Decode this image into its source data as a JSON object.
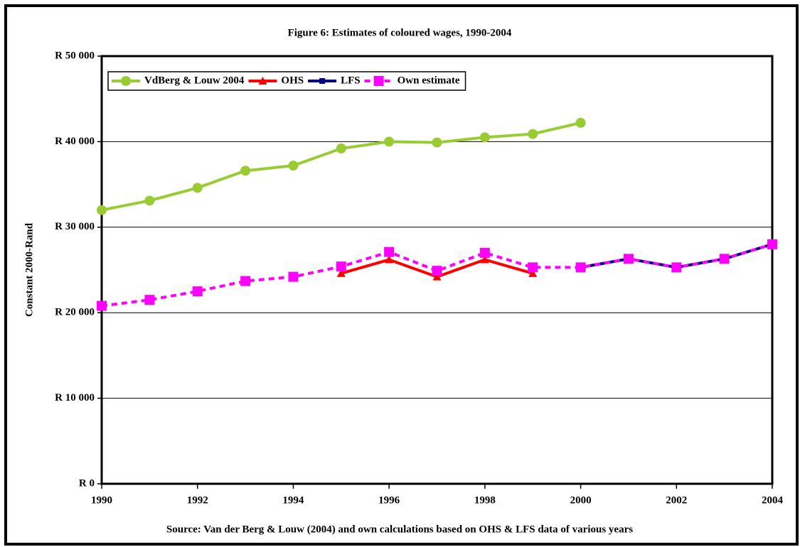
{
  "chart_data": {
    "type": "line",
    "title": "Figure 6: Estimates of coloured wages, 1990-2004",
    "y_label": "Constant 2000-Rand",
    "source": "Source: Van der Berg & Louw (2004) and own calculations based on OHS & LFS data of various years",
    "x": [
      1990,
      1991,
      1992,
      1993,
      1994,
      1995,
      1996,
      1997,
      1998,
      1999,
      2000,
      2001,
      2002,
      2003,
      2004
    ],
    "series": [
      {
        "name": "VdBerg & Louw 2004",
        "color": "#99cc33",
        "marker": "circle",
        "dashed": false,
        "values": [
          32000,
          33100,
          34600,
          36600,
          37200,
          39200,
          40000,
          39900,
          40500,
          40900,
          42200,
          null,
          null,
          null,
          null
        ]
      },
      {
        "name": "OHS",
        "color": "#ff0000",
        "marker": "triangle",
        "dashed": false,
        "values": [
          null,
          null,
          null,
          null,
          null,
          24600,
          26200,
          24200,
          26200,
          24600,
          null,
          null,
          null,
          null,
          null
        ]
      },
      {
        "name": "LFS",
        "color": "#000080",
        "marker": "square",
        "dashed": false,
        "values": [
          null,
          null,
          null,
          null,
          null,
          null,
          null,
          null,
          null,
          null,
          25300,
          26300,
          25300,
          26300,
          28000
        ]
      },
      {
        "name": "Own estimate",
        "color": "#ff00ff",
        "marker": "square",
        "dashed": true,
        "values": [
          20800,
          21500,
          22500,
          23700,
          24200,
          25400,
          27100,
          24900,
          27000,
          25300,
          25300,
          26300,
          25300,
          26300,
          28000
        ]
      }
    ],
    "xlim": [
      1990,
      2004
    ],
    "xticks": [
      1990,
      1992,
      1994,
      1996,
      1998,
      2000,
      2002,
      2004
    ],
    "ylim": [
      0,
      50000
    ],
    "yticks": [
      {
        "value": 0,
        "label": "R 0"
      },
      {
        "value": 10000,
        "label": "R 10 000"
      },
      {
        "value": 20000,
        "label": "R 20 000"
      },
      {
        "value": 30000,
        "label": "R 30 000"
      },
      {
        "value": 40000,
        "label": "R 40 000"
      },
      {
        "value": 50000,
        "label": "R 50 000"
      }
    ],
    "grid": true,
    "legend": "top-left"
  }
}
